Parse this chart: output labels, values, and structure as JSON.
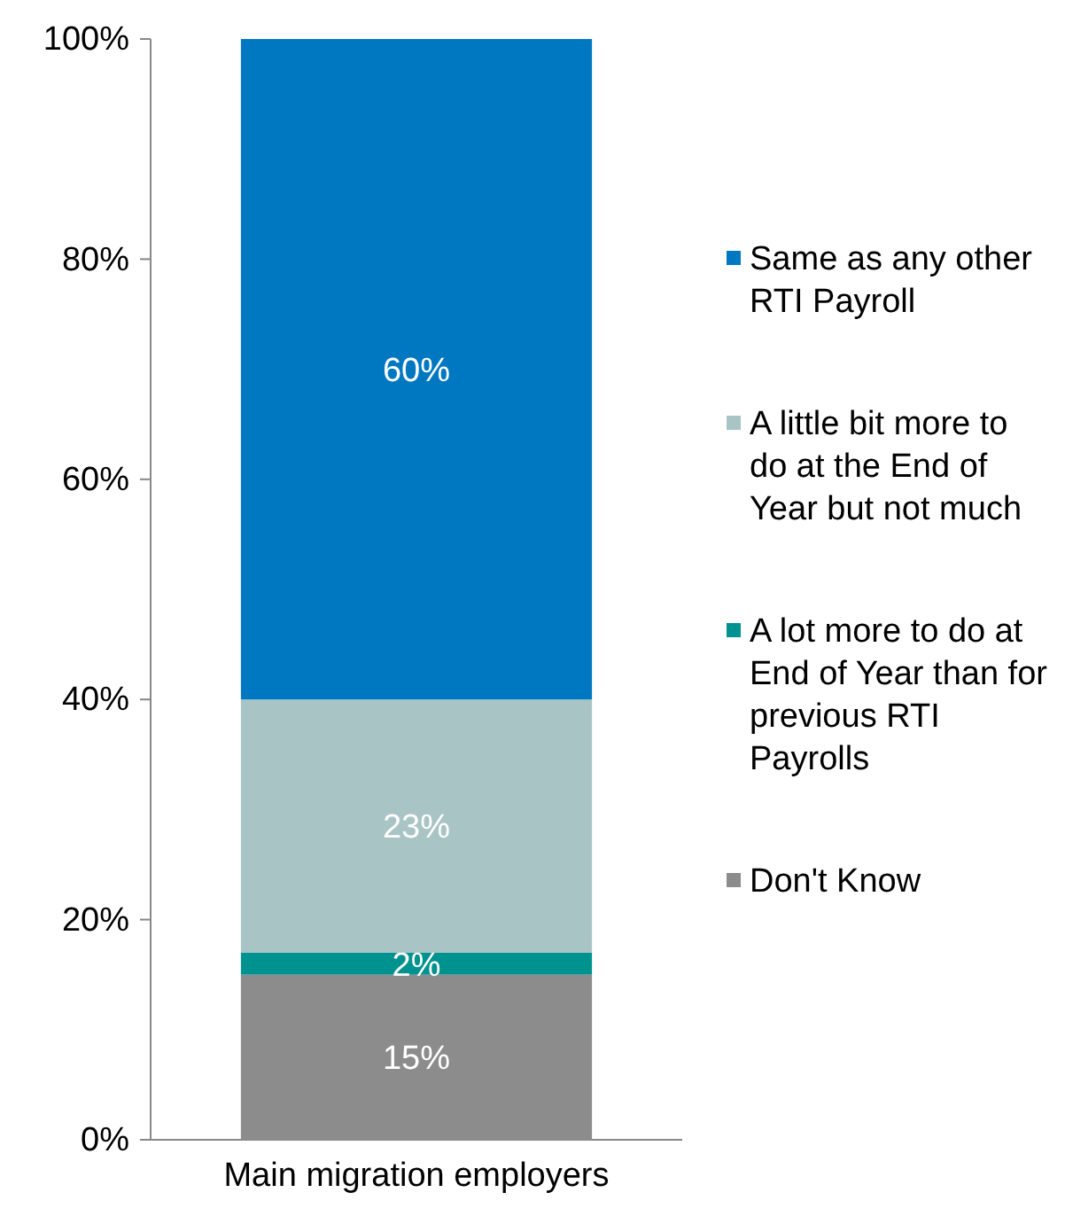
{
  "chart_data": {
    "type": "bar",
    "stacked": true,
    "categories": [
      "Main migration employers"
    ],
    "series": [
      {
        "name": "Don't Know",
        "color": "#8c8c8c",
        "values": [
          15
        ],
        "value_labels": [
          "15%"
        ]
      },
      {
        "name": "A lot more to do at End of Year than for previous RTI Payrolls",
        "color": "#00928f",
        "values": [
          2
        ],
        "value_labels": [
          "2%"
        ]
      },
      {
        "name": "A little bit more to do at the End of Year but not much",
        "color": "#a9c4c4",
        "values": [
          23
        ],
        "value_labels": [
          "23%"
        ]
      },
      {
        "name": "Same as any other RTI Payroll",
        "color": "#0078c1",
        "values": [
          60
        ],
        "value_labels": [
          "60%"
        ]
      }
    ],
    "ylim": [
      0,
      100
    ],
    "yticks": [
      {
        "value": 0,
        "label": "0%"
      },
      {
        "value": 20,
        "label": "20%"
      },
      {
        "value": 40,
        "label": "40%"
      },
      {
        "value": 60,
        "label": "60%"
      },
      {
        "value": 80,
        "label": "80%"
      },
      {
        "value": 100,
        "label": "100%"
      }
    ],
    "grid": false,
    "legend": "right"
  }
}
